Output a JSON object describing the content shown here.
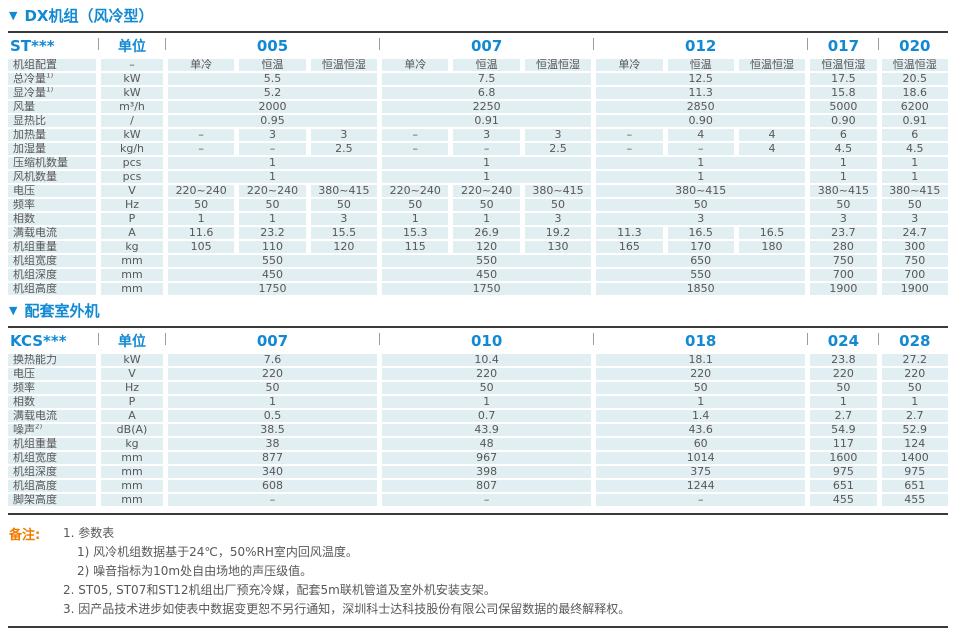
{
  "ui": {
    "marker": "▼"
  },
  "colors": {
    "accent_blue": "#1289d3",
    "note_orange": "#f07d00",
    "cell_bg": "#e1eef2",
    "text_gray": "#595757",
    "rule_dark": "#3a3a3a"
  },
  "table1": {
    "title": "DX机组（风冷型）",
    "header": {
      "model": "ST***",
      "unit": "单位",
      "groups": [
        {
          "m": "005",
          "s": 3
        },
        {
          "m": "007",
          "s": 3
        },
        {
          "m": "012",
          "s": 3
        },
        {
          "m": "017",
          "s": 1
        },
        {
          "m": "020",
          "s": 1
        }
      ]
    },
    "rows": [
      {
        "label": "机组配置",
        "unit": "–",
        "cells": [
          {
            "v": "单冷"
          },
          {
            "v": "恒温"
          },
          {
            "v": "恒温恒湿"
          },
          {
            "v": "单冷"
          },
          {
            "v": "恒温"
          },
          {
            "v": "恒温恒湿"
          },
          {
            "v": "单冷"
          },
          {
            "v": "恒温"
          },
          {
            "v": "恒温恒湿"
          },
          {
            "v": "恒温恒湿"
          },
          {
            "v": "恒温恒湿"
          }
        ]
      },
      {
        "label": "总冷量",
        "sup": "1)",
        "unit": "kW",
        "cells": [
          {
            "v": "5.5",
            "s": 3
          },
          {
            "v": "7.5",
            "s": 3
          },
          {
            "v": "12.5",
            "s": 3
          },
          {
            "v": "17.5"
          },
          {
            "v": "20.5"
          }
        ]
      },
      {
        "label": "显冷量",
        "sup": "1)",
        "unit": "kW",
        "cells": [
          {
            "v": "5.2",
            "s": 3
          },
          {
            "v": "6.8",
            "s": 3
          },
          {
            "v": "11.3",
            "s": 3
          },
          {
            "v": "15.8"
          },
          {
            "v": "18.6"
          }
        ]
      },
      {
        "label": "风量",
        "unit": "m³/h",
        "cells": [
          {
            "v": "2000",
            "s": 3
          },
          {
            "v": "2250",
            "s": 3
          },
          {
            "v": "2850",
            "s": 3
          },
          {
            "v": "5000"
          },
          {
            "v": "6200"
          }
        ]
      },
      {
        "label": "显热比",
        "unit": "/",
        "cells": [
          {
            "v": "0.95",
            "s": 3
          },
          {
            "v": "0.91",
            "s": 3
          },
          {
            "v": "0.90",
            "s": 3
          },
          {
            "v": "0.90"
          },
          {
            "v": "0.91"
          }
        ]
      },
      {
        "label": "加热量",
        "unit": "kW",
        "cells": [
          {
            "v": "–"
          },
          {
            "v": "3"
          },
          {
            "v": "3"
          },
          {
            "v": "–"
          },
          {
            "v": "3"
          },
          {
            "v": "3"
          },
          {
            "v": "–"
          },
          {
            "v": "4"
          },
          {
            "v": "4"
          },
          {
            "v": "6"
          },
          {
            "v": "6"
          }
        ]
      },
      {
        "label": "加湿量",
        "unit": "kg/h",
        "cells": [
          {
            "v": "–"
          },
          {
            "v": "–"
          },
          {
            "v": "2.5"
          },
          {
            "v": "–"
          },
          {
            "v": "–"
          },
          {
            "v": "2.5"
          },
          {
            "v": "–"
          },
          {
            "v": "–"
          },
          {
            "v": "4"
          },
          {
            "v": "4.5"
          },
          {
            "v": "4.5"
          }
        ]
      },
      {
        "label": "压缩机数量",
        "unit": "pcs",
        "cells": [
          {
            "v": "1",
            "s": 3
          },
          {
            "v": "1",
            "s": 3
          },
          {
            "v": "1",
            "s": 3
          },
          {
            "v": "1"
          },
          {
            "v": "1"
          }
        ]
      },
      {
        "label": "风机数量",
        "unit": "pcs",
        "cells": [
          {
            "v": "1",
            "s": 3
          },
          {
            "v": "1",
            "s": 3
          },
          {
            "v": "1",
            "s": 3
          },
          {
            "v": "1"
          },
          {
            "v": "1"
          }
        ]
      },
      {
        "label": "电压",
        "unit": "V",
        "cells": [
          {
            "v": "220~240"
          },
          {
            "v": "220~240"
          },
          {
            "v": "380~415"
          },
          {
            "v": "220~240"
          },
          {
            "v": "220~240"
          },
          {
            "v": "380~415"
          },
          {
            "v": "380~415",
            "s": 3
          },
          {
            "v": "380~415"
          },
          {
            "v": "380~415"
          }
        ]
      },
      {
        "label": "频率",
        "unit": "Hz",
        "cells": [
          {
            "v": "50"
          },
          {
            "v": "50"
          },
          {
            "v": "50"
          },
          {
            "v": "50"
          },
          {
            "v": "50"
          },
          {
            "v": "50"
          },
          {
            "v": "50",
            "s": 3
          },
          {
            "v": "50"
          },
          {
            "v": "50"
          }
        ]
      },
      {
        "label": "相数",
        "unit": "P",
        "cells": [
          {
            "v": "1"
          },
          {
            "v": "1"
          },
          {
            "v": "3"
          },
          {
            "v": "1"
          },
          {
            "v": "1"
          },
          {
            "v": "3"
          },
          {
            "v": "3",
            "s": 3
          },
          {
            "v": "3"
          },
          {
            "v": "3"
          }
        ]
      },
      {
        "label": "满载电流",
        "unit": "A",
        "cells": [
          {
            "v": "11.6"
          },
          {
            "v": "23.2"
          },
          {
            "v": "15.5"
          },
          {
            "v": "15.3"
          },
          {
            "v": "26.9"
          },
          {
            "v": "19.2"
          },
          {
            "v": "11.3"
          },
          {
            "v": "16.5"
          },
          {
            "v": "16.5"
          },
          {
            "v": "23.7"
          },
          {
            "v": "24.7"
          }
        ]
      },
      {
        "label": "机组重量",
        "unit": "kg",
        "cells": [
          {
            "v": "105"
          },
          {
            "v": "110"
          },
          {
            "v": "120"
          },
          {
            "v": "115"
          },
          {
            "v": "120"
          },
          {
            "v": "130"
          },
          {
            "v": "165"
          },
          {
            "v": "170"
          },
          {
            "v": "180"
          },
          {
            "v": "280"
          },
          {
            "v": "300"
          }
        ]
      },
      {
        "label": "机组宽度",
        "unit": "mm",
        "cells": [
          {
            "v": "550",
            "s": 3
          },
          {
            "v": "550",
            "s": 3
          },
          {
            "v": "650",
            "s": 3
          },
          {
            "v": "750"
          },
          {
            "v": "750"
          }
        ]
      },
      {
        "label": "机组深度",
        "unit": "mm",
        "cells": [
          {
            "v": "450",
            "s": 3
          },
          {
            "v": "450",
            "s": 3
          },
          {
            "v": "550",
            "s": 3
          },
          {
            "v": "700"
          },
          {
            "v": "700"
          }
        ]
      },
      {
        "label": "机组高度",
        "unit": "mm",
        "cells": [
          {
            "v": "1750",
            "s": 3
          },
          {
            "v": "1750",
            "s": 3
          },
          {
            "v": "1850",
            "s": 3
          },
          {
            "v": "1900"
          },
          {
            "v": "1900"
          }
        ]
      }
    ]
  },
  "table2": {
    "title": "配套室外机",
    "header": {
      "model": "KCS***",
      "unit": "单位",
      "groups": [
        {
          "m": "007",
          "s": 3
        },
        {
          "m": "010",
          "s": 3
        },
        {
          "m": "018",
          "s": 3
        },
        {
          "m": "024",
          "s": 1
        },
        {
          "m": "028",
          "s": 1
        }
      ]
    },
    "rows": [
      {
        "label": "换热能力",
        "unit": "kW",
        "cells": [
          {
            "v": "7.6",
            "s": 3
          },
          {
            "v": "10.4",
            "s": 3
          },
          {
            "v": "18.1",
            "s": 3
          },
          {
            "v": "23.8"
          },
          {
            "v": "27.2"
          }
        ]
      },
      {
        "label": "电压",
        "unit": "V",
        "cells": [
          {
            "v": "220",
            "s": 3
          },
          {
            "v": "220",
            "s": 3
          },
          {
            "v": "220",
            "s": 3
          },
          {
            "v": "220"
          },
          {
            "v": "220"
          }
        ]
      },
      {
        "label": "频率",
        "unit": "Hz",
        "cells": [
          {
            "v": "50",
            "s": 3
          },
          {
            "v": "50",
            "s": 3
          },
          {
            "v": "50",
            "s": 3
          },
          {
            "v": "50"
          },
          {
            "v": "50"
          }
        ]
      },
      {
        "label": "相数",
        "unit": "P",
        "cells": [
          {
            "v": "1",
            "s": 3
          },
          {
            "v": "1",
            "s": 3
          },
          {
            "v": "1",
            "s": 3
          },
          {
            "v": "1"
          },
          {
            "v": "1"
          }
        ]
      },
      {
        "label": "满载电流",
        "unit": "A",
        "cells": [
          {
            "v": "0.5",
            "s": 3
          },
          {
            "v": "0.7",
            "s": 3
          },
          {
            "v": "1.4",
            "s": 3
          },
          {
            "v": "2.7"
          },
          {
            "v": "2.7"
          }
        ]
      },
      {
        "label": "噪声",
        "sup": "2)",
        "unit": "dB(A)",
        "cells": [
          {
            "v": "38.5",
            "s": 3
          },
          {
            "v": "43.9",
            "s": 3
          },
          {
            "v": "43.6",
            "s": 3
          },
          {
            "v": "54.9"
          },
          {
            "v": "52.9"
          }
        ]
      },
      {
        "label": "机组重量",
        "unit": "kg",
        "cells": [
          {
            "v": "38",
            "s": 3
          },
          {
            "v": "48",
            "s": 3
          },
          {
            "v": "60",
            "s": 3
          },
          {
            "v": "117"
          },
          {
            "v": "124"
          }
        ]
      },
      {
        "label": "机组宽度",
        "unit": "mm",
        "cells": [
          {
            "v": "877",
            "s": 3
          },
          {
            "v": "967",
            "s": 3
          },
          {
            "v": "1014",
            "s": 3
          },
          {
            "v": "1600"
          },
          {
            "v": "1400"
          }
        ]
      },
      {
        "label": "机组深度",
        "unit": "mm",
        "cells": [
          {
            "v": "340",
            "s": 3
          },
          {
            "v": "398",
            "s": 3
          },
          {
            "v": "375",
            "s": 3
          },
          {
            "v": "975"
          },
          {
            "v": "975"
          }
        ]
      },
      {
        "label": "机组高度",
        "unit": "mm",
        "cells": [
          {
            "v": "608",
            "s": 3
          },
          {
            "v": "807",
            "s": 3
          },
          {
            "v": "1244",
            "s": 3
          },
          {
            "v": "651"
          },
          {
            "v": "651"
          }
        ]
      },
      {
        "label": "脚架高度",
        "unit": "mm",
        "cells": [
          {
            "v": "–",
            "s": 3
          },
          {
            "v": "–",
            "s": 3
          },
          {
            "v": "–",
            "s": 3
          },
          {
            "v": "455"
          },
          {
            "v": "455"
          }
        ]
      }
    ]
  },
  "notes": {
    "label": "备注:",
    "items": [
      {
        "text": "1. 参数表"
      },
      {
        "text": "1) 风冷机组数据基于24℃，50%RH室内回风温度。"
      },
      {
        "text": "2) 噪音指标为10m处自由场地的声压级值。"
      },
      {
        "text": "2. ST05, ST07和ST12机组出厂预充冷媒，配套5m联机管道及室外机安装支架。"
      },
      {
        "text": "3. 因产品技术进步如使表中数据变更恕不另行通知，深圳科士达科技股份有限公司保留数据的最终解释权。"
      }
    ]
  }
}
